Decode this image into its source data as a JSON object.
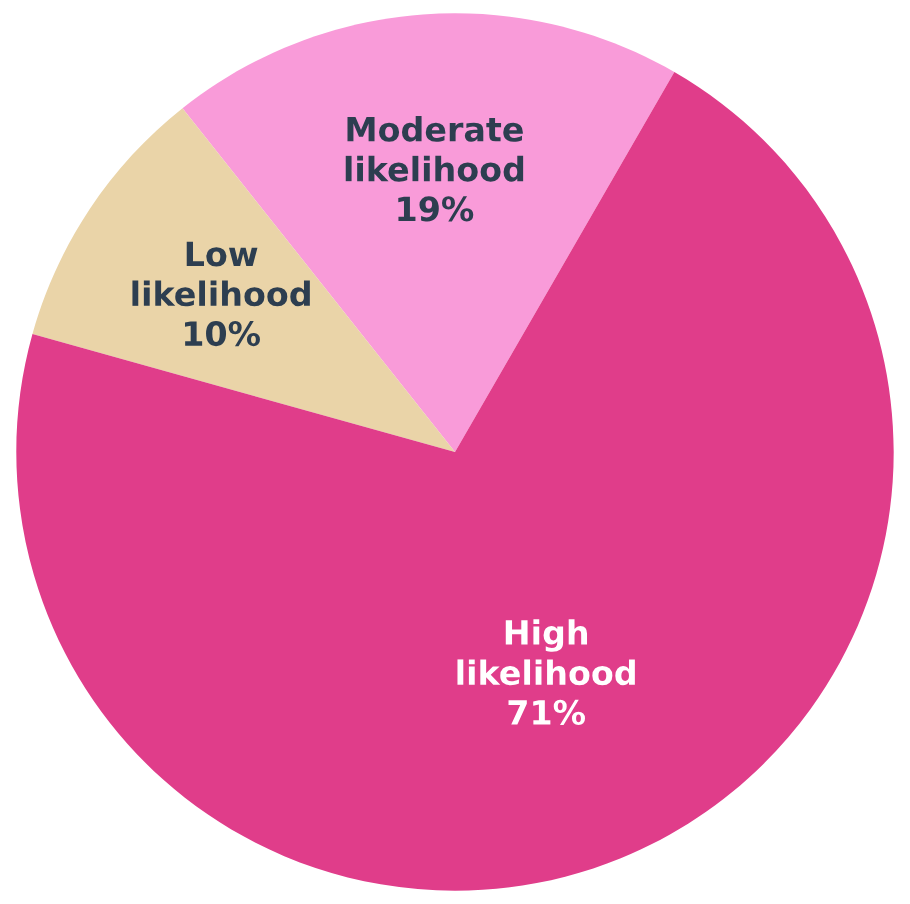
{
  "chart_data": {
    "type": "pie",
    "categories": [
      "Moderate likelihood",
      "Low likelihood",
      "High likelihood"
    ],
    "values": [
      19,
      10,
      71
    ],
    "colors": [
      "#f99bd9",
      "#ead4a8",
      "#e03d8a"
    ],
    "value_labels": [
      "19%",
      "10%",
      "71%"
    ]
  }
}
